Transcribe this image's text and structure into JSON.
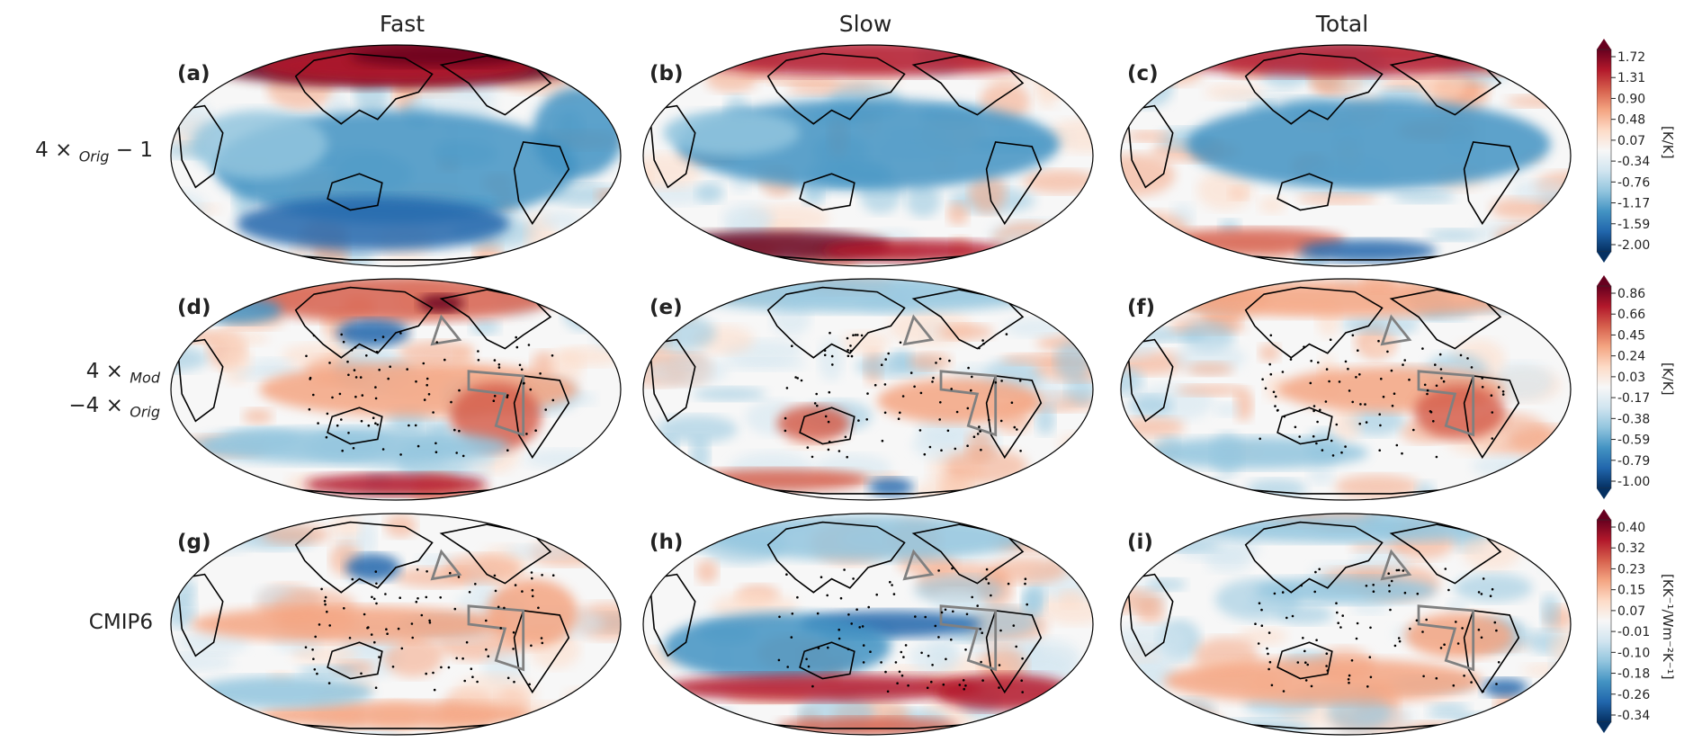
{
  "columns": [
    "Fast",
    "Slow",
    "Total"
  ],
  "rows": [
    {
      "line1": "4 × ",
      "sub1": "Orig",
      "tail1": " − 1",
      "line2": "",
      "sub2": "",
      "tail2": ""
    },
    {
      "line1": "4 × ",
      "sub1": "Mod",
      "tail1": "",
      "line2": "−4 × ",
      "sub2": "Orig",
      "tail2": ""
    },
    {
      "line1": "CMIP6",
      "sub1": "",
      "tail1": "",
      "line2": "",
      "sub2": "",
      "tail2": ""
    }
  ],
  "panels": [
    "(a)",
    "(b)",
    "(c)",
    "(d)",
    "(e)",
    "(f)",
    "(g)",
    "(h)",
    "(i)"
  ],
  "colorbars": [
    {
      "ticks": [
        "1.72",
        "1.31",
        "0.90",
        "0.48",
        "0.07",
        "-0.34",
        "-0.76",
        "-1.17",
        "-1.59",
        "-2.00"
      ],
      "unit": "[K/K]"
    },
    {
      "ticks": [
        "0.86",
        "0.66",
        "0.45",
        "0.24",
        "0.03",
        "-0.17",
        "-0.38",
        "-0.59",
        "-0.79",
        "-1.00"
      ],
      "unit": "[K/K]"
    },
    {
      "ticks": [
        "0.40",
        "0.32",
        "0.23",
        "0.15",
        "0.07",
        "-0.01",
        "-0.10",
        "-0.18",
        "-0.26",
        "-0.34"
      ],
      "unit": "[KK⁻¹/Wm⁻²K⁻¹]"
    }
  ],
  "colors": {
    "warm": "#b2182b",
    "cool": "#2166ac",
    "neutral": "#ffffff",
    "land_outline": "#000000",
    "region_outline": "#808080"
  }
}
